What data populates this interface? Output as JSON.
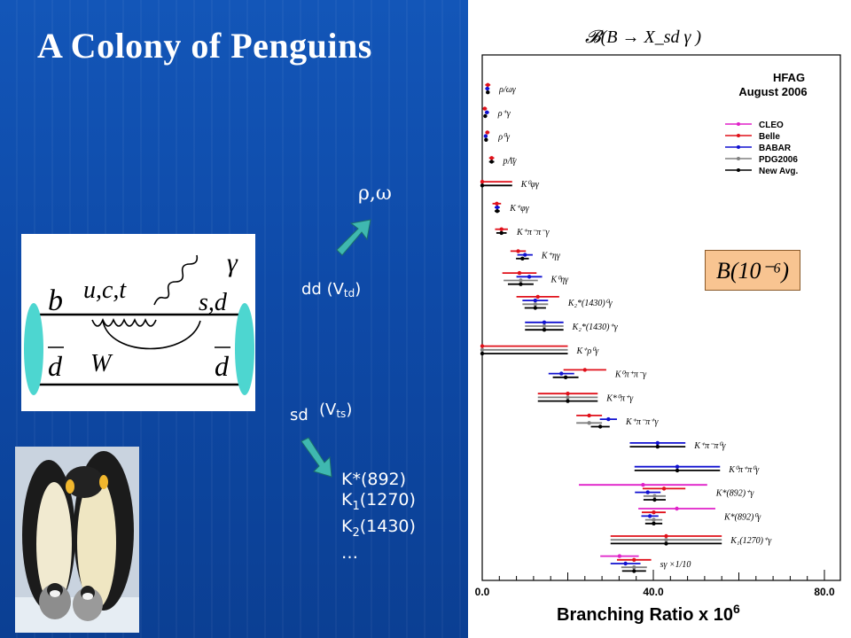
{
  "slide": {
    "title": "A Colony of Penguins",
    "labels": {
      "rho_omega": "ρ,ω",
      "dd": "dd (V",
      "dd_sub": "td",
      "dd_close": ")",
      "sd": "sd",
      "vts": "(V",
      "vts_sub": "ts",
      "vts_close": ")"
    },
    "k_list": [
      {
        "main": "K*(892)",
        "sub": "",
        "tail": ""
      },
      {
        "main": "K",
        "sub": "1",
        "tail": "(1270)"
      },
      {
        "main": "K",
        "sub": "2",
        "tail": "(1430)"
      },
      {
        "main": "…",
        "sub": "",
        "tail": ""
      }
    ],
    "feynman": {
      "b": "b",
      "uct": "u,c,t",
      "gamma": "γ",
      "sd": "s,d",
      "dbar_left": "d",
      "W": "W",
      "dbar_right": "d"
    }
  },
  "colors": {
    "CLEO": "#e020c8",
    "Belle": "#e0101a",
    "BABAR": "#1010d0",
    "PDG2006": "#808080",
    "NewAvg": "#000000",
    "arrow": "#3fb8b0",
    "bar": "#4dd6d0",
    "box": "#f8c491"
  },
  "chart_data": {
    "type": "errorbar",
    "title": "𝓑(B → X_sd γ )",
    "header_line1": "HFAG",
    "header_line2": "August 2006",
    "xlabel": "Branching Ratio x 10",
    "xlabel_exp": "6",
    "xlim": [
      0,
      80
    ],
    "xticks": [
      "0.0",
      "40.0",
      "80.0"
    ],
    "box_label": "B(10⁻⁶)",
    "legend": [
      "CLEO",
      "Belle",
      "BABAR",
      "PDG2006",
      "New Avg."
    ],
    "rows": [
      {
        "label": "ρ/ωγ",
        "points": [
          {
            "s": "Belle",
            "v": 1.3,
            "e": 0.6
          },
          {
            "s": "BABAR",
            "v": 1.2,
            "e": 0.5
          },
          {
            "s": "NewAvg",
            "v": 1.3,
            "e": 0.4
          }
        ]
      },
      {
        "label": "ρ⁺γ",
        "points": [
          {
            "s": "Belle",
            "v": 0.6,
            "e": 0.5
          },
          {
            "s": "BABAR",
            "v": 1.1,
            "e": 0.5
          },
          {
            "s": "NewAvg",
            "v": 0.7,
            "e": 0.4
          }
        ]
      },
      {
        "label": "ρ⁰γ",
        "points": [
          {
            "s": "Belle",
            "v": 1.2,
            "e": 0.5
          },
          {
            "s": "BABAR",
            "v": 0.8,
            "e": 0.4
          },
          {
            "s": "NewAvg",
            "v": 0.9,
            "e": 0.3
          }
        ]
      },
      {
        "label": "pΛ̄γ",
        "points": [
          {
            "s": "Belle",
            "v": 2.2,
            "e": 0.6
          },
          {
            "s": "NewAvg",
            "v": 2.2,
            "e": 0.6
          }
        ]
      },
      {
        "label": "K⁰φγ",
        "points": [
          {
            "s": "Belle",
            "v": 0.0,
            "e": 7.0
          },
          {
            "s": "NewAvg",
            "v": 0.0,
            "e": 7.0
          }
        ]
      },
      {
        "label": "K⁺φγ",
        "points": [
          {
            "s": "Belle",
            "v": 3.4,
            "e": 1.0
          },
          {
            "s": "BABAR",
            "v": 3.5,
            "e": 0.6
          },
          {
            "s": "NewAvg",
            "v": 3.5,
            "e": 0.6
          }
        ]
      },
      {
        "label": "K⁺π⁻π⁻γ",
        "points": [
          {
            "s": "Belle",
            "v": 4.5,
            "e": 1.5
          },
          {
            "s": "NewAvg",
            "v": 4.5,
            "e": 1.2
          }
        ]
      },
      {
        "label": "K⁺ηγ",
        "points": [
          {
            "s": "Belle",
            "v": 8.4,
            "e": 1.8
          },
          {
            "s": "BABAR",
            "v": 10.0,
            "e": 1.8
          },
          {
            "s": "NewAvg",
            "v": 9.4,
            "e": 1.5
          }
        ]
      },
      {
        "label": "K⁰ηγ",
        "points": [
          {
            "s": "Belle",
            "v": 8.7,
            "e": 4.0
          },
          {
            "s": "BABAR",
            "v": 11.0,
            "e": 3.0
          },
          {
            "s": "PDG2006",
            "v": 9.0,
            "e": 4.0
          },
          {
            "s": "NewAvg",
            "v": 9.0,
            "e": 3.0
          }
        ]
      },
      {
        "label": "K₂*(1430)⁰γ",
        "points": [
          {
            "s": "Belle",
            "v": 13.0,
            "e": 5.0
          },
          {
            "s": "BABAR",
            "v": 12.4,
            "e": 3.0
          },
          {
            "s": "PDG2006",
            "v": 12.4,
            "e": 3.0
          },
          {
            "s": "NewAvg",
            "v": 12.4,
            "e": 2.5
          }
        ]
      },
      {
        "label": "K₂*(1430)⁺γ",
        "points": [
          {
            "s": "BABAR",
            "v": 14.5,
            "e": 4.5
          },
          {
            "s": "PDG2006",
            "v": 14.5,
            "e": 4.5
          },
          {
            "s": "NewAvg",
            "v": 14.5,
            "e": 4.5
          }
        ]
      },
      {
        "label": "K⁺ρ⁰γ",
        "points": [
          {
            "s": "Belle",
            "v": 0.0,
            "e": 20.0
          },
          {
            "s": "PDG2006",
            "v": 0.0,
            "e": 20.0
          },
          {
            "s": "NewAvg",
            "v": 0.0,
            "e": 20.0
          }
        ]
      },
      {
        "label": "K⁰π⁺π⁻γ",
        "points": [
          {
            "s": "Belle",
            "v": 24.0,
            "e": 5.0
          },
          {
            "s": "BABAR",
            "v": 18.5,
            "e": 3.0
          },
          {
            "s": "NewAvg",
            "v": 19.5,
            "e": 3.0
          }
        ]
      },
      {
        "label": "K*⁰π⁺γ",
        "points": [
          {
            "s": "Belle",
            "v": 20.0,
            "e": 7.0
          },
          {
            "s": "PDG2006",
            "v": 20.0,
            "e": 7.0
          },
          {
            "s": "NewAvg",
            "v": 20.0,
            "e": 7.0
          }
        ]
      },
      {
        "label": "K⁺π⁻π⁺γ",
        "points": [
          {
            "s": "Belle",
            "v": 25.0,
            "e": 3.0
          },
          {
            "s": "BABAR",
            "v": 29.5,
            "e": 2.0
          },
          {
            "s": "PDG2006",
            "v": 25.0,
            "e": 3.0
          },
          {
            "s": "NewAvg",
            "v": 27.6,
            "e": 2.2
          }
        ]
      },
      {
        "label": "K⁺π⁻π⁰γ",
        "points": [
          {
            "s": "BABAR",
            "v": 41.0,
            "e": 6.5
          },
          {
            "s": "NewAvg",
            "v": 41.0,
            "e": 6.5
          }
        ]
      },
      {
        "label": "K⁰π⁺π⁰γ",
        "points": [
          {
            "s": "BABAR",
            "v": 45.6,
            "e": 10.0
          },
          {
            "s": "NewAvg",
            "v": 45.6,
            "e": 10.0
          }
        ]
      },
      {
        "label": "K*(892)⁺γ",
        "points": [
          {
            "s": "CLEO",
            "v": 37.6,
            "e": 15.0
          },
          {
            "s": "Belle",
            "v": 42.5,
            "e": 5.0
          },
          {
            "s": "BABAR",
            "v": 38.7,
            "e": 3.0
          },
          {
            "s": "PDG2006",
            "v": 40.3,
            "e": 2.6
          },
          {
            "s": "NewAvg",
            "v": 40.3,
            "e": 2.6
          }
        ]
      },
      {
        "label": "K*(892)⁰γ",
        "points": [
          {
            "s": "CLEO",
            "v": 45.5,
            "e": 9.0
          },
          {
            "s": "Belle",
            "v": 40.1,
            "e": 2.8
          },
          {
            "s": "BABAR",
            "v": 39.2,
            "e": 2.0
          },
          {
            "s": "PDG2006",
            "v": 40.1,
            "e": 2.0
          },
          {
            "s": "NewAvg",
            "v": 40.1,
            "e": 2.0
          }
        ]
      },
      {
        "label": "K₁(1270)⁺γ",
        "points": [
          {
            "s": "Belle",
            "v": 43.0,
            "e": 13.0
          },
          {
            "s": "PDG2006",
            "v": 43.0,
            "e": 13.0
          },
          {
            "s": "NewAvg",
            "v": 43.0,
            "e": 13.0
          }
        ]
      },
      {
        "label": "sγ ×1/10",
        "points": [
          {
            "s": "CLEO",
            "v": 32.1,
            "e": 4.5
          },
          {
            "s": "Belle",
            "v": 35.5,
            "e": 4.0
          },
          {
            "s": "BABAR",
            "v": 33.5,
            "e": 3.5
          },
          {
            "s": "PDG2006",
            "v": 35.5,
            "e": 3.0
          },
          {
            "s": "NewAvg",
            "v": 35.5,
            "e": 2.8
          }
        ]
      }
    ]
  }
}
